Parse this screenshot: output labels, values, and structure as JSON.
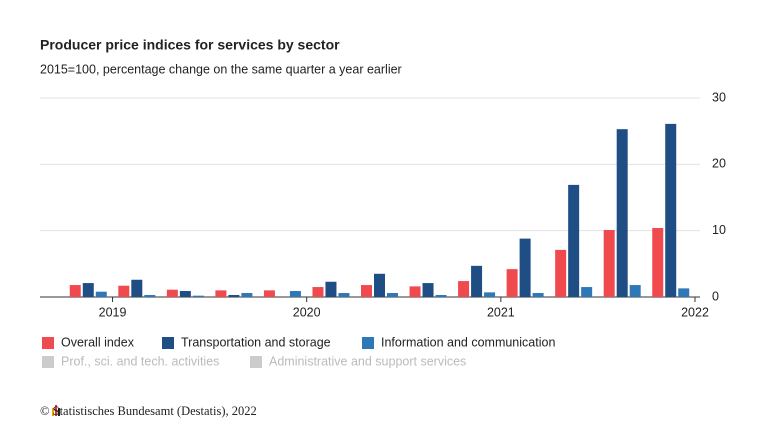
{
  "chart_data": {
    "type": "bar",
    "title": "Producer price indices for services by sector",
    "subtitle": "2015=100, percentage change on the same quarter a year earlier",
    "xticks": [
      {
        "value": 1,
        "label": "2019"
      },
      {
        "value": 5,
        "label": "2020"
      },
      {
        "value": 9,
        "label": "2021"
      },
      {
        "value": 13,
        "label": "2022"
      }
    ],
    "ylim": [
      0,
      30
    ],
    "yticks": [
      0,
      10,
      20,
      30
    ],
    "grid": true,
    "series": [
      {
        "name": "Overall index",
        "color": "#f04a4f",
        "values": [
          1.8,
          1.7,
          1.1,
          1.0,
          1.0,
          1.5,
          1.8,
          1.6,
          2.4,
          4.2,
          7.1,
          10.1,
          10.4
        ]
      },
      {
        "name": "Transportation and storage",
        "color": "#1f4e85",
        "values": [
          2.1,
          2.6,
          0.9,
          0.3,
          0.0,
          2.3,
          3.5,
          2.1,
          4.7,
          8.8,
          16.9,
          25.3,
          26.1
        ]
      },
      {
        "name": "Information and communication",
        "color": "#2f78b7",
        "values": [
          0.8,
          0.3,
          0.2,
          0.6,
          0.9,
          0.6,
          0.6,
          0.3,
          0.7,
          0.6,
          1.5,
          1.8,
          1.3
        ]
      },
      {
        "name": "Prof., sci. and tech. activities",
        "color": "#cccccc",
        "hidden": true,
        "values": [
          null,
          null,
          null,
          null,
          null,
          null,
          null,
          null,
          null,
          null,
          null,
          null,
          null
        ]
      },
      {
        "name": "Administrative and support services",
        "color": "#cccccc",
        "hidden": true,
        "values": [
          null,
          null,
          null,
          null,
          null,
          null,
          null,
          null,
          null,
          null,
          null,
          null,
          null
        ]
      }
    ],
    "source": "© Statistisches Bundesamt (Destatis), 2022"
  }
}
